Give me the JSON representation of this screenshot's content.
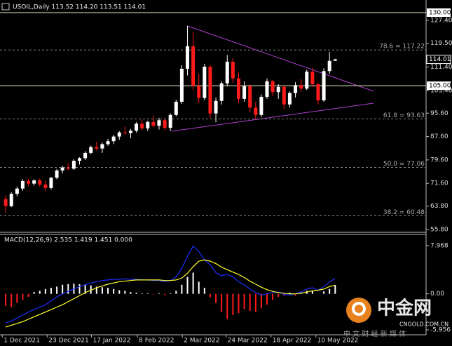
{
  "chart_data": [
    {
      "type": "candlestick",
      "title": "USOIL,Daily  113.52 114.20 113.51 114.01",
      "up_color": "#ffffff",
      "down_color": "#ff1a1a",
      "xlim": [
        -1,
        74
      ],
      "ylim": [
        55.8,
        130
      ],
      "yticks": [
        {
          "value": 127.4,
          "label": "127.40"
        },
        {
          "value": 119.5,
          "label": "119.50"
        },
        {
          "value": 111.4,
          "label": "111.40"
        },
        {
          "value": 103.4,
          "label": "103.40"
        },
        {
          "value": 95.6,
          "label": "95.60"
        },
        {
          "value": 87.6,
          "label": "87.60"
        },
        {
          "value": 79.6,
          "label": "79.60"
        },
        {
          "value": 71.6,
          "label": "71.60"
        },
        {
          "value": 63.8,
          "label": "63.80"
        },
        {
          "value": 55.8,
          "label": "55.80"
        }
      ],
      "xticks": [
        {
          "value": -0.6,
          "label": "1 Dec 2021"
        },
        {
          "value": 7.3,
          "label": "23 Dec 2021"
        },
        {
          "value": 15.1,
          "label": "17 Jan 2022"
        },
        {
          "value": 23.2,
          "label": "8 Feb 2022"
        },
        {
          "value": 31.1,
          "label": "2 Mar 2022"
        },
        {
          "value": 38.8,
          "label": "24 Mar 2022"
        },
        {
          "value": 46.7,
          "label": "18 Apr 2022"
        },
        {
          "value": 54.6,
          "label": "10 May 2022"
        }
      ],
      "hlines": [
        {
          "value": 130,
          "label": "130.00"
        },
        {
          "value": 105,
          "label": "105.00"
        }
      ],
      "last_price": {
        "value": 114.01,
        "label": "114.01"
      },
      "fib_levels": [
        {
          "value": 117.22,
          "label": "78.6 = 117.22"
        },
        {
          "value": 93.63,
          "label": "61.8 = 93.63"
        },
        {
          "value": 77.06,
          "label": "50.0 = 77.06"
        },
        {
          "value": 60.48,
          "label": "38.2 = 60.48"
        }
      ],
      "ohlc": [
        [
          66.2,
          67.5,
          61.5,
          63.8
        ],
        [
          63.8,
          68.5,
          63.5,
          68.0
        ],
        [
          68.0,
          70.5,
          67.2,
          69.8
        ],
        [
          69.8,
          73.0,
          69.0,
          72.4
        ],
        [
          72.4,
          73.2,
          70.6,
          71.5
        ],
        [
          71.5,
          73.0,
          70.8,
          72.6
        ],
        [
          72.6,
          73.2,
          70.5,
          71.2
        ],
        [
          71.2,
          72.5,
          69.0,
          70.0
        ],
        [
          70.0,
          73.8,
          69.5,
          73.5
        ],
        [
          73.5,
          76.5,
          73.0,
          76.0
        ],
        [
          76.0,
          77.6,
          75.0,
          77.0
        ],
        [
          77.0,
          78.5,
          76.0,
          76.6
        ],
        [
          76.6,
          79.8,
          76.2,
          79.3
        ],
        [
          79.3,
          80.5,
          78.0,
          80.2
        ],
        [
          80.2,
          82.6,
          79.6,
          82.0
        ],
        [
          82.0,
          84.5,
          81.5,
          84.0
        ],
        [
          84.0,
          85.8,
          82.8,
          83.5
        ],
        [
          83.5,
          85.5,
          82.0,
          85.0
        ],
        [
          85.0,
          86.8,
          84.4,
          86.0
        ],
        [
          86.0,
          88.2,
          85.0,
          87.6
        ],
        [
          87.6,
          89.5,
          86.5,
          89.0
        ],
        [
          89.0,
          91.0,
          88.2,
          88.8
        ],
        [
          88.8,
          90.2,
          87.0,
          89.6
        ],
        [
          89.6,
          92.5,
          89.0,
          92.0
        ],
        [
          92.0,
          93.5,
          89.8,
          90.4
        ],
        [
          90.4,
          93.0,
          89.5,
          92.6
        ],
        [
          92.6,
          94.8,
          90.8,
          91.3
        ],
        [
          91.3,
          94.0,
          90.0,
          93.2
        ],
        [
          93.2,
          93.8,
          89.8,
          90.6
        ],
        [
          90.6,
          95.5,
          89.5,
          95.0
        ],
        [
          95.0,
          100.2,
          94.5,
          99.5
        ],
        [
          99.5,
          112.0,
          98.8,
          110.8
        ],
        [
          110.8,
          125.5,
          108.5,
          118.5
        ],
        [
          118.5,
          123.5,
          103.5,
          105.0
        ],
        [
          105.0,
          109.0,
          99.0,
          100.8
        ],
        [
          100.8,
          112.5,
          100.0,
          111.5
        ],
        [
          111.5,
          112.0,
          94.0,
          95.5
        ],
        [
          95.5,
          101.0,
          92.5,
          99.8
        ],
        [
          99.8,
          106.5,
          98.5,
          105.8
        ],
        [
          105.8,
          115.5,
          104.8,
          113.2
        ],
        [
          113.2,
          114.5,
          106.0,
          107.5
        ],
        [
          107.5,
          109.5,
          99.0,
          100.5
        ],
        [
          100.5,
          106.5,
          99.5,
          104.8
        ],
        [
          104.8,
          105.5,
          96.0,
          97.5
        ],
        [
          97.5,
          99.5,
          93.5,
          95.0
        ],
        [
          95.0,
          102.0,
          94.2,
          101.2
        ],
        [
          101.2,
          107.5,
          100.5,
          106.5
        ],
        [
          106.5,
          107.0,
          101.5,
          102.8
        ],
        [
          102.8,
          105.5,
          100.5,
          104.6
        ],
        [
          104.6,
          105.0,
          97.0,
          98.6
        ],
        [
          98.6,
          103.0,
          97.5,
          102.5
        ],
        [
          102.5,
          106.2,
          101.0,
          105.2
        ],
        [
          105.2,
          107.2,
          103.0,
          104.0
        ],
        [
          104.0,
          110.5,
          103.5,
          109.8
        ],
        [
          109.8,
          111.2,
          104.5,
          105.5
        ],
        [
          105.5,
          106.0,
          98.5,
          100.0
        ],
        [
          100.0,
          111.0,
          99.5,
          110.0
        ],
        [
          110.0,
          116.5,
          109.0,
          113.5
        ],
        [
          113.52,
          114.2,
          113.51,
          114.01
        ]
      ]
    },
    {
      "type": "macd",
      "title": "MACD(12,26,9) 2.535 1.419 1.451 0.000",
      "xlim": [
        -1,
        74
      ],
      "ylim": [
        -5.956,
        7.968
      ],
      "yticks": [
        {
          "value": 7.968,
          "label": "7.968"
        },
        {
          "value": 0,
          "label": "0.00"
        },
        {
          "value": -5.956,
          "label": "-5.956"
        }
      ],
      "histogram": {
        "up_color": "#ffffff",
        "down_color": "#ff1a1a",
        "values": [
          -2.0,
          -2.2,
          -1.5,
          -1.0,
          -0.5,
          0.3,
          0.5,
          0.8,
          1.0,
          1.2,
          1.5,
          1.6,
          1.7,
          1.6,
          1.5,
          1.4,
          1.2,
          1.1,
          1.0,
          0.8,
          0.6,
          0.5,
          0.3,
          0.2,
          0.1,
          0.1,
          -0.1,
          0.1,
          -0.2,
          0.1,
          0.5,
          1.5,
          2.8,
          3.5,
          2.0,
          1.0,
          -0.6,
          -1.5,
          -3.0,
          -4.2,
          -3.5,
          -3.2,
          -2.5,
          -2.8,
          -3.0,
          -2.4,
          -1.8,
          -1.0,
          -0.5,
          -0.3,
          0.2,
          -0.3,
          0.2,
          0.5,
          0.5,
          0.0,
          0.4,
          0.8,
          1.451
        ]
      },
      "series": [
        {
          "color": "#1f2fff",
          "values": [
            -4.8,
            -4.5,
            -4.0,
            -3.5,
            -3.0,
            -2.6,
            -2.2,
            -1.8,
            -1.2,
            -0.5,
            0.0,
            0.4,
            0.8,
            1.2,
            1.5,
            1.8,
            2.0,
            2.2,
            2.3,
            2.4,
            2.4,
            2.5,
            2.4,
            2.4,
            2.3,
            2.3,
            2.2,
            2.2,
            2.0,
            2.2,
            2.8,
            4.2,
            6.2,
            7.9,
            7.0,
            5.6,
            4.8,
            3.5,
            3.0,
            3.2,
            2.8,
            2.0,
            1.5,
            0.8,
            0.2,
            -0.2,
            0.0,
            0.2,
            0.3,
            -0.1,
            -0.2,
            0.0,
            0.3,
            0.8,
            1.0,
            0.6,
            1.2,
            2.0,
            2.535
          ]
        },
        {
          "color": "#ffff33",
          "values": [
            -5.5,
            -5.2,
            -4.9,
            -4.6,
            -4.2,
            -3.8,
            -3.4,
            -3.0,
            -2.6,
            -2.2,
            -1.8,
            -1.3,
            -0.8,
            -0.3,
            0.2,
            0.6,
            1.0,
            1.3,
            1.6,
            1.8,
            2.0,
            2.1,
            2.2,
            2.3,
            2.3,
            2.3,
            2.3,
            2.3,
            2.2,
            2.2,
            2.3,
            2.6,
            3.4,
            4.5,
            5.4,
            5.6,
            5.4,
            5.0,
            4.4,
            4.0,
            3.6,
            3.2,
            2.7,
            2.1,
            1.6,
            1.1,
            0.7,
            0.4,
            0.2,
            0.1,
            0.0,
            0.0,
            0.1,
            0.3,
            0.5,
            0.6,
            0.8,
            1.2,
            1.419
          ]
        }
      ]
    }
  ],
  "watermark": {
    "brand": "中金网",
    "site": "CNGOLD.COM.CN",
    "slogan": "中 文 财 经 新 媒 体"
  }
}
